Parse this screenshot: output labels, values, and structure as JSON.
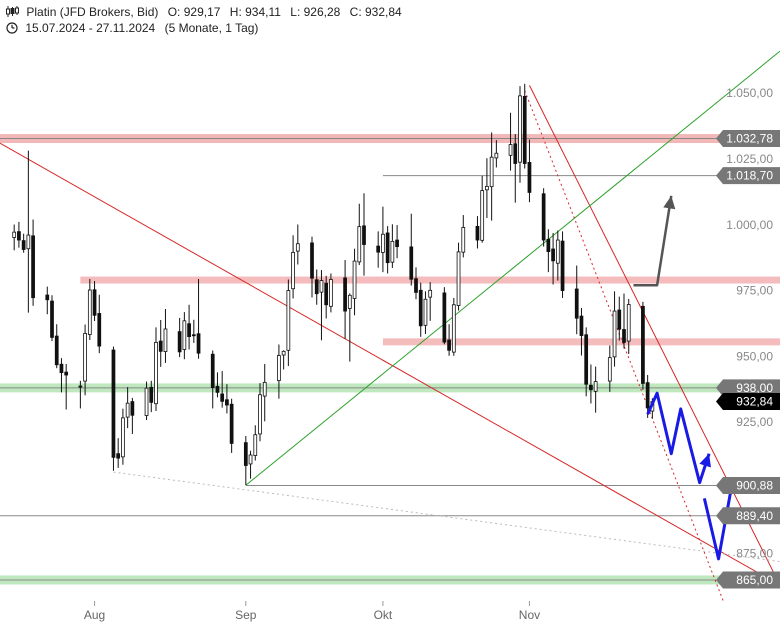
{
  "header": {
    "instrument": "Platin (JFD Brokers, Bid)",
    "open": "O: 929,17",
    "high": "H: 934,11",
    "low": "L: 926,28",
    "close": "C: 932,84",
    "range": "15.07.2024 - 27.11.2024",
    "period": "(5 Monate, 1 Tag)",
    "bars_icon": "candlestick-icon",
    "clock_icon": "clock-icon"
  },
  "chart_data": {
    "type": "candlestick",
    "x_ticks": [
      {
        "label": "Aug",
        "date": "2024-08-01"
      },
      {
        "label": "Sep",
        "date": "2024-09-02"
      },
      {
        "label": "Okt",
        "date": "2024-10-01"
      },
      {
        "label": "Nov",
        "date": "2024-11-01"
      }
    ],
    "y_ticks": [
      {
        "value": 1050,
        "label": "1.050,00"
      },
      {
        "value": 1025,
        "label": "1.025,00"
      },
      {
        "value": 1000,
        "label": "1.000,00"
      },
      {
        "value": 975,
        "label": "975,00"
      },
      {
        "value": 950,
        "label": "950,00"
      },
      {
        "value": 925,
        "label": "925,00"
      },
      {
        "value": 875,
        "label": "875,00"
      }
    ],
    "ylim": [
      857,
      1071
    ],
    "xlim": [
      "2024-07-12",
      "2024-12-24"
    ],
    "price_levels": [
      {
        "value": 1032.78,
        "label": "1.032,78",
        "zone": "#f2b8b8",
        "line": "#888888"
      },
      {
        "value": 1018.7,
        "label": "1.018,70",
        "zone": "",
        "line": "#888888"
      },
      {
        "value": 938.0,
        "label": "938,00",
        "zone": "#bfe8bf",
        "line": "#888888"
      },
      {
        "value": 900.88,
        "label": "900,88",
        "zone": "",
        "line": "#888888"
      },
      {
        "value": 889.4,
        "label": "889,40",
        "zone": "",
        "line": "#888888"
      },
      {
        "value": 865.0,
        "label": "865,00",
        "zone": "#bfe8bf",
        "line": "#888888"
      }
    ],
    "resistance_zones": [
      {
        "value": 979.0,
        "from": "2024-07-29"
      },
      {
        "value": 955.5,
        "from": "2024-10-01"
      }
    ],
    "current_price": {
      "value": 932.84,
      "label": "932,84"
    },
    "trendlines": [
      {
        "color": "#d62728",
        "from": {
          "date": "2024-07-12",
          "value": 1031
        },
        "to": {
          "date": "2024-12-24",
          "value": 863
        }
      },
      {
        "color": "#d62728",
        "from": {
          "date": "2024-11-01",
          "value": 1053
        },
        "to": {
          "date": "2024-12-24",
          "value": 863
        }
      },
      {
        "color": "#2ca02c",
        "from": {
          "date": "2024-09-02",
          "value": 901
        },
        "to": {
          "date": "2024-12-24",
          "value": 1066
        }
      },
      {
        "color": "#d62728",
        "dashed": true,
        "from": {
          "date": "2024-10-31",
          "value": 1051
        },
        "to": {
          "date": "2024-12-12",
          "value": 857
        }
      },
      {
        "color": "#bbbbbb",
        "dashed": true,
        "from": {
          "date": "2024-08-05",
          "value": 906
        },
        "to": {
          "date": "2024-12-24",
          "value": 872
        }
      }
    ],
    "scenario_arrows": [
      {
        "color": "#555555",
        "points": [
          [
            "2024-11-23",
            977
          ],
          [
            "2024-11-28",
            977
          ],
          [
            "2024-12-01",
            1011
          ]
        ]
      },
      {
        "color": "#1a1ae6",
        "points": [
          [
            "2024-11-26",
            928
          ],
          [
            "2024-11-28",
            936
          ],
          [
            "2024-12-01",
            913
          ],
          [
            "2024-12-03",
            930
          ],
          [
            "2024-12-07",
            902
          ],
          [
            "2024-12-09",
            913
          ]
        ]
      },
      {
        "color": "#1a1ae6",
        "points": [
          [
            "2024-12-08",
            896
          ],
          [
            "2024-12-11",
            873
          ],
          [
            "2024-12-14",
            903
          ]
        ]
      }
    ],
    "ohlc": [
      [
        "2024-07-15",
        995.2,
        1000.1,
        990.3,
        997.2
      ],
      [
        "2024-07-16",
        997.4,
        1001.1,
        991.3,
        994.2
      ],
      [
        "2024-07-17",
        994.0,
        996.6,
        989.4,
        990.6
      ],
      [
        "2024-07-18",
        990.9,
        1028.2,
        966.6,
        996.1
      ],
      [
        "2024-07-19",
        995.8,
        1002.0,
        969.2,
        972.3
      ],
      [
        "2024-07-22",
        973.3,
        976.5,
        966.0,
        971.5
      ],
      [
        "2024-07-23",
        971.0,
        973.2,
        955.8,
        957.2
      ],
      [
        "2024-07-24",
        957.7,
        962.2,
        945.5,
        946.8
      ],
      [
        "2024-07-25",
        947.0,
        949.3,
        936.3,
        943.8
      ],
      [
        "2024-07-26",
        944.0,
        947.1,
        929.8,
        942.9
      ],
      [
        "2024-07-29",
        938.7,
        940.7,
        930.2,
        938.4
      ],
      [
        "2024-07-30",
        940.6,
        962.1,
        935.2,
        958.7
      ],
      [
        "2024-07-31",
        958.3,
        979.4,
        956.2,
        975.2
      ],
      [
        "2024-08-01",
        975.3,
        978.6,
        963.4,
        965.6
      ],
      [
        "2024-08-02",
        966.3,
        973.4,
        951.2,
        953.9
      ],
      [
        "2024-08-05",
        952.4,
        953.7,
        906.5,
        911.6
      ],
      [
        "2024-08-06",
        913.0,
        918.9,
        907.6,
        911.3
      ],
      [
        "2024-08-07",
        911.8,
        930.1,
        908.8,
        926.6
      ],
      [
        "2024-08-08",
        926.9,
        938.3,
        922.7,
        932.2
      ],
      [
        "2024-08-09",
        932.8,
        934.2,
        920.5,
        927.6
      ],
      [
        "2024-08-12",
        927.5,
        940.4,
        925.8,
        937.9
      ],
      [
        "2024-08-13",
        938.2,
        940.7,
        928.8,
        932.5
      ],
      [
        "2024-08-14",
        932.0,
        961.0,
        929.2,
        955.3
      ],
      [
        "2024-08-15",
        955.8,
        963.8,
        946.0,
        951.9
      ],
      [
        "2024-08-16",
        951.8,
        968.0,
        947.5,
        960.4
      ],
      [
        "2024-08-19",
        959.4,
        964.6,
        949.7,
        951.7
      ],
      [
        "2024-08-20",
        952.6,
        966.8,
        948.9,
        963.5
      ],
      [
        "2024-08-21",
        962.4,
        969.6,
        952.6,
        957.5
      ],
      [
        "2024-08-22",
        958.2,
        963.9,
        955.1,
        957.9
      ],
      [
        "2024-08-23",
        958.6,
        979.4,
        949.1,
        951.2
      ],
      [
        "2024-08-26",
        950.8,
        952.2,
        930.2,
        938.1
      ],
      [
        "2024-08-27",
        938.6,
        943.9,
        934.4,
        936.3
      ],
      [
        "2024-08-28",
        935.7,
        944.4,
        930.5,
        932.9
      ],
      [
        "2024-08-29",
        933.5,
        939.4,
        928.3,
        931.5
      ],
      [
        "2024-08-30",
        931.8,
        933.9,
        913.3,
        916.9
      ],
      [
        "2024-09-02",
        917.2,
        919.7,
        901.1,
        908.5
      ],
      [
        "2024-09-03",
        909.1,
        914.1,
        903.5,
        912.5
      ],
      [
        "2024-09-04",
        912.3,
        923.8,
        910.4,
        920.2
      ],
      [
        "2024-09-05",
        920.5,
        939.8,
        917.7,
        935.4
      ],
      [
        "2024-09-06",
        934.9,
        947.1,
        925.3,
        940.1
      ],
      [
        "2024-09-09",
        940.8,
        954.5,
        933.9,
        950.3
      ],
      [
        "2024-09-10",
        950.5,
        952.3,
        945.0,
        951.9
      ],
      [
        "2024-09-11",
        952.3,
        979.2,
        946.3,
        975.0
      ],
      [
        "2024-09-12",
        975.7,
        996.0,
        972.0,
        989.5
      ],
      [
        "2024-09-13",
        990.0,
        1000.1,
        984.9,
        992.8
      ],
      [
        "2024-09-16",
        993.1,
        995.5,
        972.4,
        979.7
      ],
      [
        "2024-09-17",
        979.1,
        983.0,
        969.6,
        973.8
      ],
      [
        "2024-09-18",
        974.4,
        982.8,
        956.1,
        978.8
      ],
      [
        "2024-09-19",
        977.8,
        980.6,
        964.4,
        969.6
      ],
      [
        "2024-09-20",
        969.0,
        981.5,
        966.7,
        979.2
      ],
      [
        "2024-09-23",
        979.8,
        986.6,
        956.6,
        967.2
      ],
      [
        "2024-09-24",
        968.2,
        973.9,
        948.0,
        973.2
      ],
      [
        "2024-09-25",
        972.0,
        990.9,
        965.6,
        986.2
      ],
      [
        "2024-09-26",
        985.9,
        1008.0,
        984.7,
        999.3
      ],
      [
        "2024-09-27",
        999.6,
        1012.0,
        980.7,
        992.5
      ],
      [
        "2024-09-30",
        991.9,
        997.5,
        983.7,
        989.6
      ],
      [
        "2024-10-01",
        989.5,
        1006.9,
        982.0,
        996.4
      ],
      [
        "2024-10-02",
        996.9,
        999.5,
        981.5,
        985.6
      ],
      [
        "2024-10-03",
        985.8,
        1000.2,
        983.6,
        993.7
      ],
      [
        "2024-10-04",
        994.2,
        999.9,
        987.3,
        991.7
      ],
      [
        "2024-10-07",
        991.6,
        1004.2,
        976.9,
        979.3
      ],
      [
        "2024-10-08",
        979.5,
        983.8,
        971.7,
        974.3
      ],
      [
        "2024-10-09",
        975.1,
        978.0,
        957.4,
        961.6
      ],
      [
        "2024-10-10",
        961.8,
        974.7,
        958.5,
        971.7
      ],
      [
        "2024-10-11",
        972.5,
        978.2,
        963.5,
        975.1
      ],
      [
        "2024-10-14",
        974.1,
        976.3,
        954.6,
        955.4
      ],
      [
        "2024-10-15",
        956.2,
        962.2,
        950.2,
        952.3
      ],
      [
        "2024-10-16",
        951.6,
        972.2,
        950.2,
        969.6
      ],
      [
        "2024-10-17",
        969.3,
        993.2,
        967.4,
        989.7
      ],
      [
        "2024-10-18",
        989.6,
        1003.7,
        987.6,
        999.0
      ],
      [
        "2024-10-21",
        999.4,
        1003.3,
        991.0,
        994.2
      ],
      [
        "2024-10-22",
        994.1,
        1018.6,
        993.2,
        1013.0
      ],
      [
        "2024-10-23",
        1013.3,
        1025.3,
        1002.6,
        1014.6
      ],
      [
        "2024-10-24",
        1014.5,
        1035.1,
        1001.6,
        1025.7
      ],
      [
        "2024-10-25",
        1025.4,
        1032.2,
        1021.8,
        1027.2
      ],
      [
        "2024-10-28",
        1026.4,
        1042.6,
        1020.6,
        1030.5
      ],
      [
        "2024-10-29",
        1030.8,
        1034.5,
        1008.4,
        1023.3
      ],
      [
        "2024-10-30",
        1023.8,
        1052.7,
        1016.0,
        1049.0
      ],
      [
        "2024-10-31",
        1048.8,
        1053.6,
        1021.4,
        1023.3
      ],
      [
        "2024-11-01",
        1023.7,
        1032.4,
        1008.6,
        1012.3
      ],
      [
        "2024-11-04",
        1011.8,
        1013.9,
        991.7,
        994.2
      ],
      [
        "2024-11-05",
        994.5,
        998.3,
        982.0,
        989.8
      ],
      [
        "2024-11-06",
        990.8,
        996.9,
        977.3,
        986.3
      ],
      [
        "2024-11-07",
        985.4,
        997.8,
        978.8,
        994.2
      ],
      [
        "2024-11-08",
        993.8,
        997.5,
        972.2,
        975.0
      ],
      [
        "2024-11-11",
        975.6,
        984.5,
        958.4,
        964.5
      ],
      [
        "2024-11-12",
        965.3,
        968.4,
        950.3,
        957.9
      ],
      [
        "2024-11-13",
        958.2,
        961.0,
        934.8,
        939.4
      ],
      [
        "2024-11-14",
        939.0,
        946.9,
        932.1,
        937.3
      ],
      [
        "2024-11-15",
        936.7,
        946.1,
        928.6,
        940.4
      ],
      [
        "2024-11-18",
        940.6,
        954.1,
        936.5,
        949.5
      ],
      [
        "2024-11-19",
        949.8,
        974.7,
        946.1,
        967.2
      ],
      [
        "2024-11-20",
        967.6,
        972.7,
        956.0,
        960.3
      ],
      [
        "2024-11-21",
        960.2,
        973.9,
        953.0,
        955.3
      ],
      [
        "2024-11-22",
        955.8,
        971.8,
        950.9,
        969.7
      ],
      [
        "2024-11-25",
        969.0,
        970.7,
        937.3,
        939.7
      ],
      [
        "2024-11-26",
        940.0,
        942.9,
        926.6,
        930.4
      ],
      [
        "2024-11-27",
        929.2,
        934.1,
        926.3,
        932.8
      ]
    ]
  }
}
